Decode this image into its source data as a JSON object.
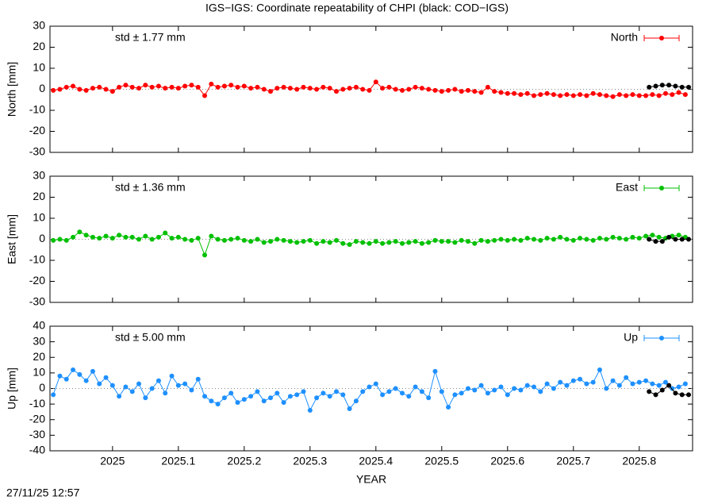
{
  "title": "IGS−IGS: Coordinate repeatability of CHPI (black: COD−IGS)",
  "timestamp": "27/11/25 12:57",
  "chart_data": [
    {
      "type": "line",
      "ylabel": "North [mm]",
      "annotation": "std ± 1.77 mm",
      "annotation_color": "#ff0000",
      "xlim": [
        2024.905,
        2025.881
      ],
      "ylim": [
        -30,
        30
      ],
      "yticks": [
        -30,
        -20,
        -10,
        0,
        10,
        20,
        30
      ],
      "zero_line": true,
      "legend": "upper right",
      "series": [
        {
          "name": "North",
          "color": "#ff0000",
          "x": [
            2024.91,
            2024.92,
            2024.93,
            2024.94,
            2024.95,
            2024.96,
            2024.97,
            2024.98,
            2024.99,
            2025.0,
            2025.01,
            2025.02,
            2025.03,
            2025.04,
            2025.05,
            2025.06,
            2025.07,
            2025.08,
            2025.09,
            2025.1,
            2025.11,
            2025.12,
            2025.13,
            2025.14,
            2025.15,
            2025.16,
            2025.17,
            2025.18,
            2025.19,
            2025.2,
            2025.21,
            2025.22,
            2025.23,
            2025.24,
            2025.25,
            2025.26,
            2025.27,
            2025.28,
            2025.29,
            2025.3,
            2025.31,
            2025.32,
            2025.33,
            2025.34,
            2025.35,
            2025.36,
            2025.37,
            2025.38,
            2025.39,
            2025.4,
            2025.41,
            2025.42,
            2025.43,
            2025.44,
            2025.45,
            2025.46,
            2025.47,
            2025.48,
            2025.49,
            2025.5,
            2025.51,
            2025.52,
            2025.53,
            2025.54,
            2025.55,
            2025.56,
            2025.57,
            2025.58,
            2025.59,
            2025.6,
            2025.61,
            2025.62,
            2025.63,
            2025.64,
            2025.65,
            2025.66,
            2025.67,
            2025.68,
            2025.69,
            2025.7,
            2025.71,
            2025.72,
            2025.73,
            2025.74,
            2025.75,
            2025.76,
            2025.77,
            2025.78,
            2025.79,
            2025.8,
            2025.81,
            2025.82,
            2025.83,
            2025.84,
            2025.85,
            2025.86,
            2025.87
          ],
          "values": [
            -0.5,
            0,
            1,
            1.5,
            0,
            -0.5,
            0.5,
            1,
            0,
            -1,
            1,
            2,
            1,
            0.5,
            2,
            1,
            1.5,
            0.5,
            1,
            0.5,
            1.5,
            2,
            1,
            -3,
            2.5,
            1,
            1.5,
            2,
            1,
            1.5,
            0.5,
            1,
            0,
            -1,
            0.5,
            1,
            0.5,
            0,
            1,
            0.5,
            0,
            1,
            0.5,
            -1,
            0,
            0.5,
            1,
            0,
            -0.5,
            3.5,
            0.5,
            1,
            0,
            -0.5,
            0,
            1,
            0.5,
            0,
            -0.5,
            -1,
            -0.5,
            0,
            -1,
            -0.5,
            -1,
            -1.5,
            1,
            -1,
            -1.5,
            -2,
            -2,
            -2.5,
            -2,
            -3,
            -2.5,
            -2,
            -2.5,
            -3,
            -2.5,
            -3,
            -2.5,
            -3,
            -2,
            -2.5,
            -3,
            -3.5,
            -2.5,
            -3,
            -2.5,
            -3,
            -3,
            -2.5,
            -3,
            -2,
            -2.5,
            -1.5,
            -2.5
          ]
        },
        {
          "color": "#000000",
          "x": [
            2025.815,
            2025.825,
            2025.835,
            2025.845,
            2025.855,
            2025.865,
            2025.875
          ],
          "values": [
            1,
            1.5,
            2,
            2,
            1.5,
            1,
            1
          ]
        }
      ]
    },
    {
      "type": "line",
      "ylabel": "East [mm]",
      "annotation": "std ± 1.36 mm",
      "annotation_color": "#00c000",
      "xlim": [
        2024.905,
        2025.881
      ],
      "ylim": [
        -30,
        30
      ],
      "yticks": [
        -30,
        -20,
        -10,
        0,
        10,
        20,
        30
      ],
      "zero_line": true,
      "legend": "upper right",
      "series": [
        {
          "name": "East",
          "color": "#00c000",
          "x": [
            2024.91,
            2024.92,
            2024.93,
            2024.94,
            2024.95,
            2024.96,
            2024.97,
            2024.98,
            2024.99,
            2025.0,
            2025.01,
            2025.02,
            2025.03,
            2025.04,
            2025.05,
            2025.06,
            2025.07,
            2025.08,
            2025.09,
            2025.1,
            2025.11,
            2025.12,
            2025.13,
            2025.14,
            2025.15,
            2025.16,
            2025.17,
            2025.18,
            2025.19,
            2025.2,
            2025.21,
            2025.22,
            2025.23,
            2025.24,
            2025.25,
            2025.26,
            2025.27,
            2025.28,
            2025.29,
            2025.3,
            2025.31,
            2025.32,
            2025.33,
            2025.34,
            2025.35,
            2025.36,
            2025.37,
            2025.38,
            2025.39,
            2025.4,
            2025.41,
            2025.42,
            2025.43,
            2025.44,
            2025.45,
            2025.46,
            2025.47,
            2025.48,
            2025.49,
            2025.5,
            2025.51,
            2025.52,
            2025.53,
            2025.54,
            2025.55,
            2025.56,
            2025.57,
            2025.58,
            2025.59,
            2025.6,
            2025.61,
            2025.62,
            2025.63,
            2025.64,
            2025.65,
            2025.66,
            2025.67,
            2025.68,
            2025.69,
            2025.7,
            2025.71,
            2025.72,
            2025.73,
            2025.74,
            2025.75,
            2025.76,
            2025.77,
            2025.78,
            2025.79,
            2025.8,
            2025.81,
            2025.82,
            2025.83,
            2025.84,
            2025.85,
            2025.86,
            2025.87
          ],
          "values": [
            -0.5,
            0,
            -0.5,
            1,
            3.5,
            2,
            1,
            0.5,
            1.5,
            0.5,
            2,
            1,
            1,
            0,
            1.5,
            0,
            1,
            3,
            0.5,
            1,
            0,
            -0.5,
            0.5,
            -7.5,
            1.5,
            0,
            -0.5,
            0,
            0.5,
            -0.5,
            -1,
            0,
            -1.5,
            -1,
            0,
            -0.5,
            -1,
            -1.5,
            -1,
            -0.5,
            -2,
            -1,
            -1.5,
            -0.5,
            -2,
            -2.5,
            -1,
            -1.5,
            -2,
            -1,
            -2,
            -1.5,
            -1,
            -2,
            -1.5,
            -1,
            -2,
            -1.5,
            -0.5,
            -1,
            -1,
            -1.5,
            -0.5,
            -1,
            -2,
            -0.5,
            -1,
            -0.5,
            0,
            -0.5,
            0,
            -0.5,
            0.5,
            0,
            -0.5,
            0.5,
            0,
            1,
            0,
            -0.5,
            0.5,
            0,
            -0.5,
            0.5,
            0,
            1,
            0.5,
            0,
            1,
            0.5,
            1.5,
            2,
            1,
            0.5,
            1.5,
            2,
            1
          ]
        },
        {
          "color": "#000000",
          "x": [
            2025.815,
            2025.825,
            2025.835,
            2025.845,
            2025.855,
            2025.865,
            2025.875
          ],
          "values": [
            0,
            -1,
            -1,
            1,
            0,
            0,
            0
          ]
        }
      ]
    },
    {
      "type": "line",
      "ylabel": "Up [mm]",
      "xlabel": "YEAR",
      "annotation": "std ± 5.00 mm",
      "annotation_color": "#1e90ff",
      "xlim": [
        2024.905,
        2025.881
      ],
      "ylim": [
        -40,
        40
      ],
      "yticks": [
        -40,
        -30,
        -20,
        -10,
        0,
        10,
        20,
        30,
        40
      ],
      "zero_line": true,
      "legend": "upper right",
      "xticks": [
        2025,
        2025.1,
        2025.2,
        2025.3,
        2025.4,
        2025.5,
        2025.6,
        2025.7,
        2025.8
      ],
      "series": [
        {
          "name": "Up",
          "color": "#1e90ff",
          "x": [
            2024.91,
            2024.92,
            2024.93,
            2024.94,
            2024.95,
            2024.96,
            2024.97,
            2024.98,
            2024.99,
            2025.0,
            2025.01,
            2025.02,
            2025.03,
            2025.04,
            2025.05,
            2025.06,
            2025.07,
            2025.08,
            2025.09,
            2025.1,
            2025.11,
            2025.12,
            2025.13,
            2025.14,
            2025.15,
            2025.16,
            2025.17,
            2025.18,
            2025.19,
            2025.2,
            2025.21,
            2025.22,
            2025.23,
            2025.24,
            2025.25,
            2025.26,
            2025.27,
            2025.28,
            2025.29,
            2025.3,
            2025.31,
            2025.32,
            2025.33,
            2025.34,
            2025.35,
            2025.36,
            2025.37,
            2025.38,
            2025.39,
            2025.4,
            2025.41,
            2025.42,
            2025.43,
            2025.44,
            2025.45,
            2025.46,
            2025.47,
            2025.48,
            2025.49,
            2025.5,
            2025.51,
            2025.52,
            2025.53,
            2025.54,
            2025.55,
            2025.56,
            2025.57,
            2025.58,
            2025.59,
            2025.6,
            2025.61,
            2025.62,
            2025.63,
            2025.64,
            2025.65,
            2025.66,
            2025.67,
            2025.68,
            2025.69,
            2025.7,
            2025.71,
            2025.72,
            2025.73,
            2025.74,
            2025.75,
            2025.76,
            2025.77,
            2025.78,
            2025.79,
            2025.8,
            2025.81,
            2025.82,
            2025.83,
            2025.84,
            2025.85,
            2025.86,
            2025.87
          ],
          "values": [
            -4,
            8,
            6,
            12,
            9,
            5,
            11,
            3,
            7,
            2,
            -5,
            1,
            -2,
            3,
            -6,
            0,
            5,
            -3,
            8,
            2,
            3,
            -1,
            6,
            -5,
            -8,
            -10,
            -6,
            -3,
            -9,
            -7,
            -5,
            -2,
            -8,
            -6,
            -3,
            -9,
            -5,
            -4,
            -2,
            -14,
            -6,
            -3,
            -5,
            -2,
            -4,
            -13,
            -8,
            -2,
            1,
            3,
            -4,
            -2,
            0,
            -3,
            -5,
            1,
            -2,
            -6,
            11,
            -2,
            -12,
            -4,
            -3,
            0,
            -1,
            2,
            -3,
            -1,
            1,
            -4,
            0,
            -1,
            2,
            1,
            -2,
            3,
            0,
            4,
            2,
            5,
            6,
            3,
            4,
            12,
            0,
            5,
            2,
            7,
            3,
            4,
            5,
            3,
            2,
            4,
            0,
            1,
            3
          ]
        },
        {
          "color": "#000000",
          "x": [
            2025.815,
            2025.825,
            2025.835,
            2025.845,
            2025.855,
            2025.865,
            2025.875
          ],
          "values": [
            -2,
            -4,
            -1,
            2,
            -3,
            -4,
            -4
          ]
        }
      ]
    }
  ]
}
